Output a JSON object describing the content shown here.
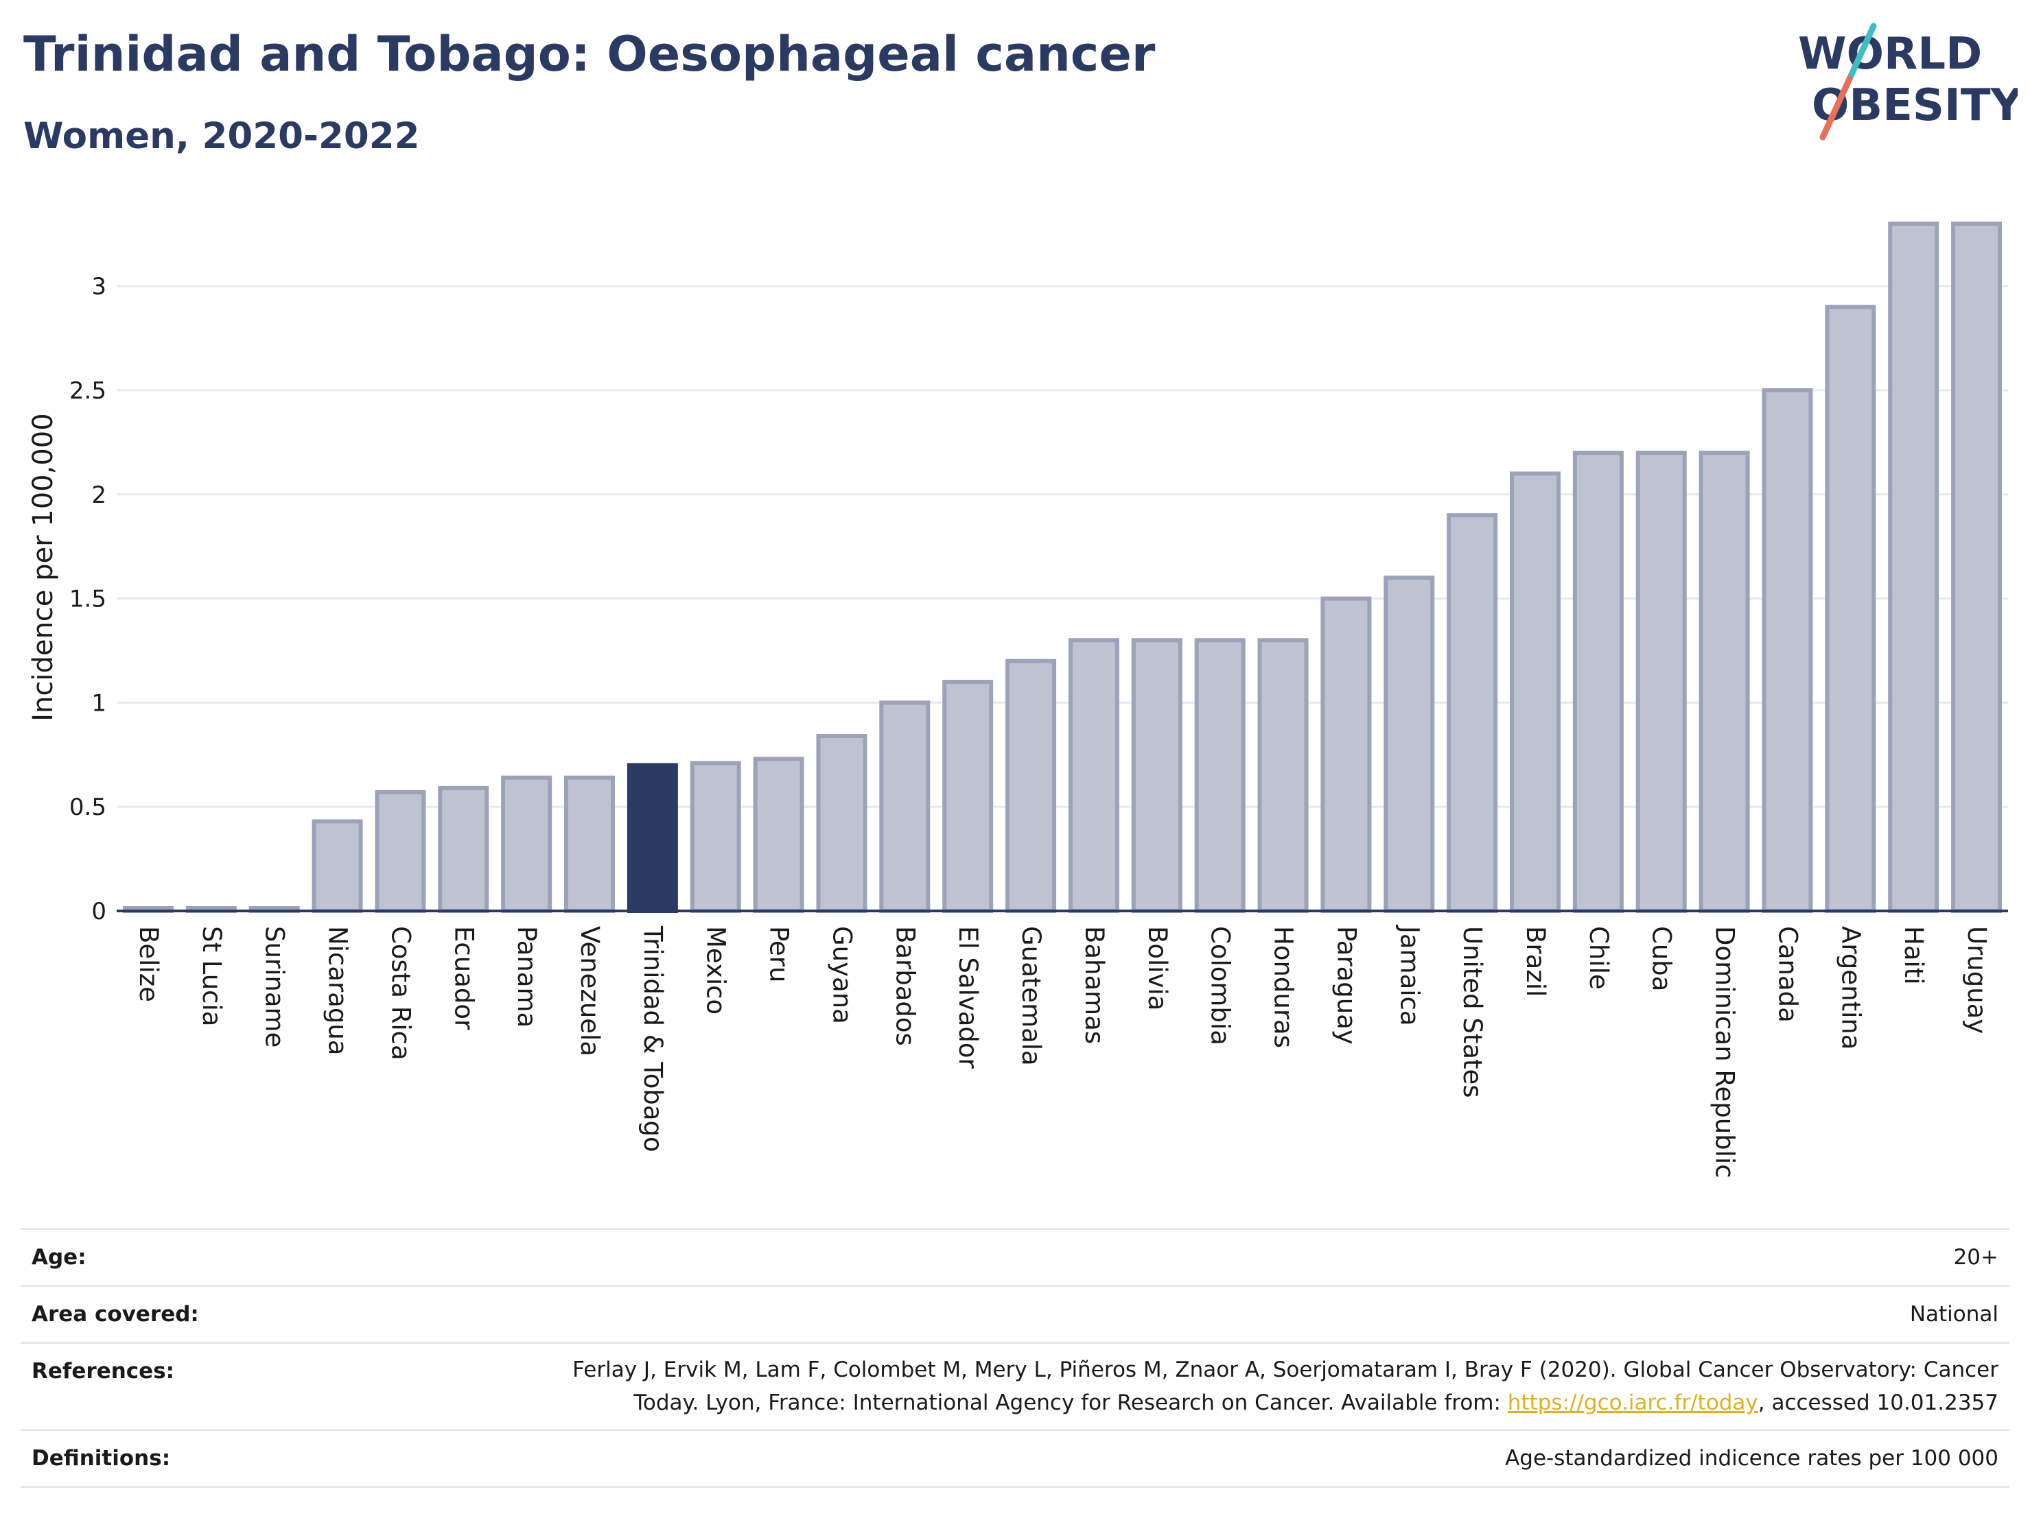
{
  "header": {
    "title": "Trinidad and Tobago: Oesophageal cancer",
    "subtitle": "Women, 2020-2022"
  },
  "logo": {
    "line1": "WORLD",
    "line2": "OBESITY",
    "text_color": "#2b3a63",
    "slash_teal": "#3fbfbf",
    "slash_coral": "#e8705a"
  },
  "colors": {
    "highlight_bar": "#2b3a63",
    "bar_fill": "#bfc3d1",
    "bar_stroke": "#9ca2b8",
    "grid": "#e6eaf0",
    "axis_line": "#2b3a63"
  },
  "chart_data": {
    "type": "bar",
    "title": "",
    "xlabel": "",
    "ylabel": "Incidence per 100,000",
    "ylim": [
      0,
      3.3
    ],
    "yticks": [
      0,
      0.5,
      1,
      1.5,
      2,
      2.5,
      3
    ],
    "ytick_labels": [
      "0",
      "0.5",
      "1",
      "1.5",
      "2",
      "2.5",
      "3"
    ],
    "grid": true,
    "highlight": "Trinidad & Tobago",
    "categories": [
      "Belize",
      "St Lucia",
      "Suriname",
      "Nicaragua",
      "Costa Rica",
      "Ecuador",
      "Panama",
      "Venezuela",
      "Trinidad & Tobago",
      "Mexico",
      "Peru",
      "Guyana",
      "Barbados",
      "El Salvador",
      "Guatemala",
      "Bahamas",
      "Bolivia",
      "Colombia",
      "Honduras",
      "Paraguay",
      "Jamaica",
      "United States",
      "Brazil",
      "Chile",
      "Cuba",
      "Dominican Republic",
      "Canada",
      "Argentina",
      "Haiti",
      "Uruguay"
    ],
    "values": [
      0.0,
      0.0,
      0.0,
      0.43,
      0.57,
      0.59,
      0.64,
      0.64,
      0.7,
      0.71,
      0.73,
      0.84,
      1.0,
      1.1,
      1.2,
      1.3,
      1.3,
      1.3,
      1.3,
      1.5,
      1.6,
      1.9,
      2.1,
      2.2,
      2.2,
      2.2,
      2.5,
      2.9,
      3.3,
      3.3
    ]
  },
  "info": {
    "age_label": "Age:",
    "age_value": "20+",
    "area_label": "Area covered:",
    "area_value": "National",
    "references_label": "References:",
    "references_line1": "Ferlay J, Ervik M, Lam F, Colombet M, Mery L, Piñeros M, Znaor A, Soerjomataram I, Bray F (2020). Global Cancer Observatory: Cancer",
    "references_line2_pre": "Today. Lyon, France: International Agency for Research on Cancer. Available from: ",
    "references_link": "https://gco.iarc.fr/today",
    "references_line2_post": ", accessed 10.01.2357",
    "definitions_label": "Definitions:",
    "definitions_value": "Age-standardized indicence rates per 100 000"
  }
}
